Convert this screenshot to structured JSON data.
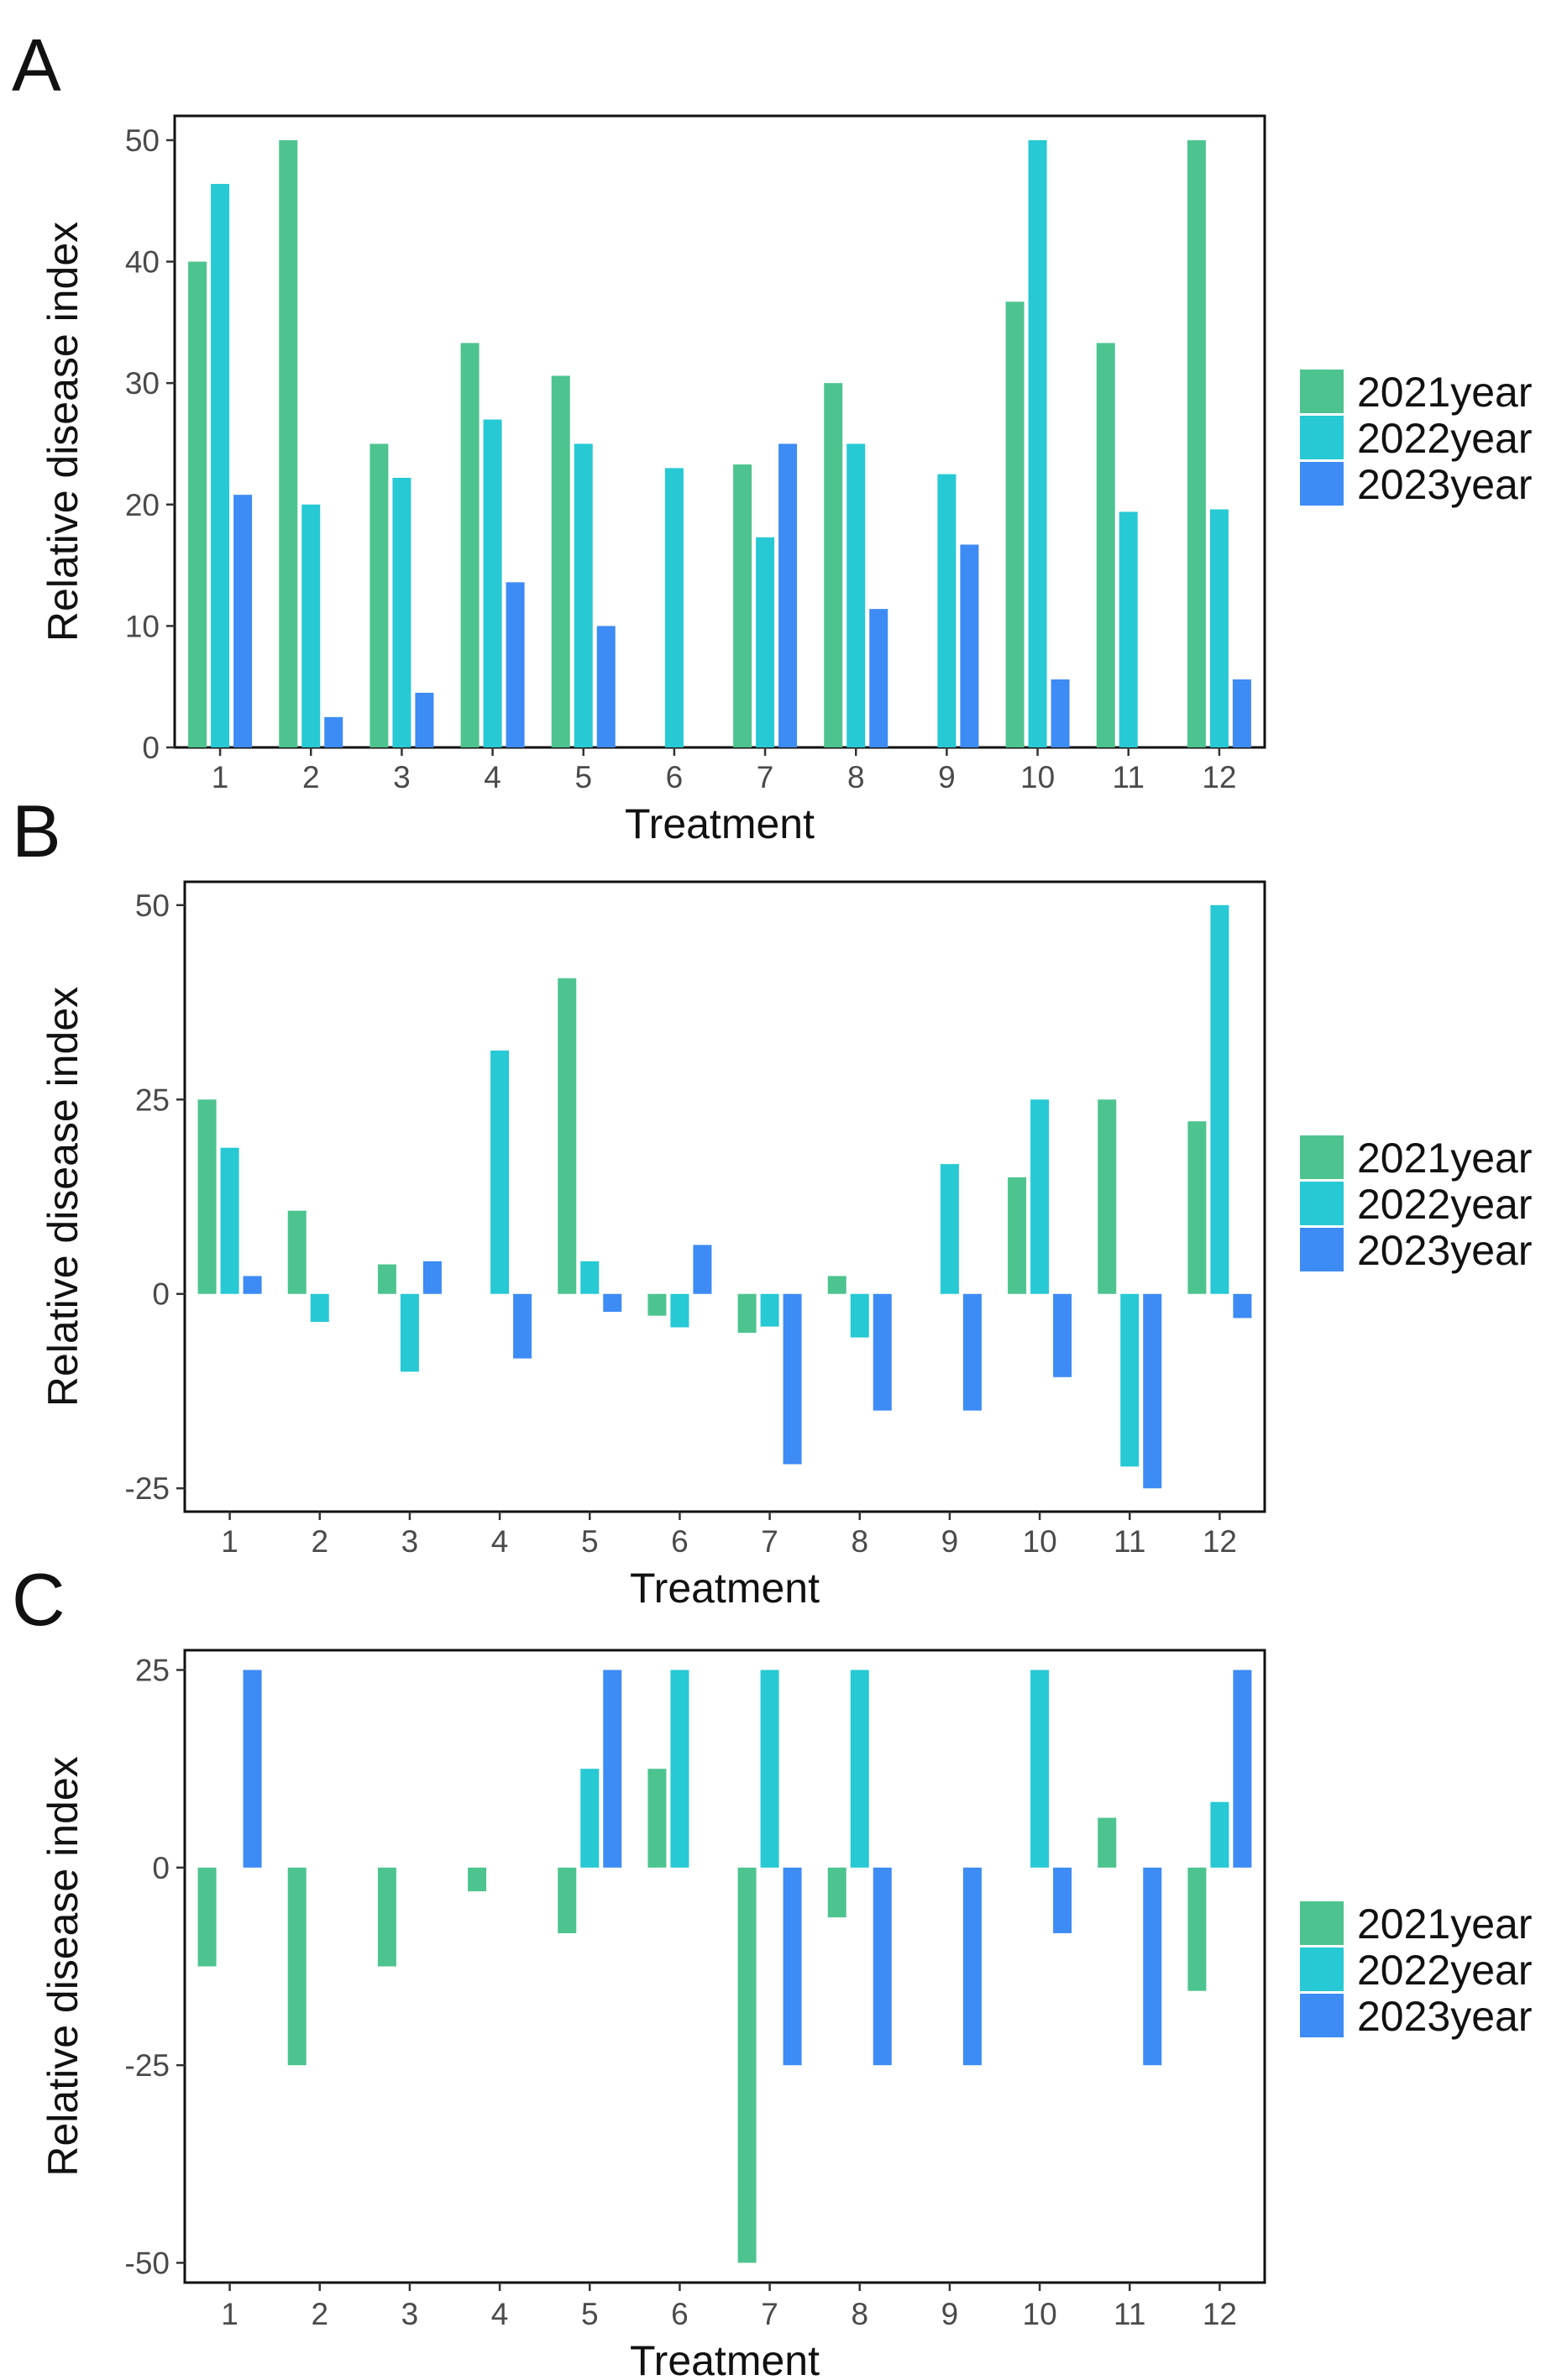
{
  "colors": {
    "2021year": "#4dc48f",
    "2022year": "#26c9d4",
    "2023year": "#3d8bf5"
  },
  "chart_data": [
    {
      "type": "bar",
      "panel_label": "A",
      "title": "",
      "xlabel": "Treatment",
      "ylabel": "Relative disease index",
      "categories": [
        "1",
        "2",
        "3",
        "4",
        "5",
        "6",
        "7",
        "8",
        "9",
        "10",
        "11",
        "12"
      ],
      "ylim": [
        0,
        52
      ],
      "yticks": [
        0,
        10,
        20,
        30,
        40,
        50
      ],
      "ytick_labels": [
        "0",
        "10",
        "20",
        "30",
        "40",
        "50"
      ],
      "legend_position": "right",
      "series": [
        {
          "name": "2021year",
          "values": [
            40,
            50,
            25,
            33.3,
            30.6,
            0,
            23.3,
            30,
            0,
            36.7,
            33.3,
            50
          ]
        },
        {
          "name": "2022year",
          "values": [
            46.4,
            20,
            22.2,
            27,
            25,
            23,
            17.3,
            25,
            22.5,
            50,
            19.4,
            19.6
          ]
        },
        {
          "name": "2023year",
          "values": [
            20.8,
            2.5,
            4.5,
            13.6,
            10,
            0,
            25,
            11.4,
            16.7,
            5.6,
            0,
            5.6
          ]
        }
      ]
    },
    {
      "type": "bar",
      "panel_label": "B",
      "title": "",
      "xlabel": "Treatment",
      "ylabel": "Relative disease index",
      "categories": [
        "1",
        "2",
        "3",
        "4",
        "5",
        "6",
        "7",
        "8",
        "9",
        "10",
        "11",
        "12"
      ],
      "ylim": [
        -28,
        53
      ],
      "yticks": [
        -25,
        0,
        25,
        50
      ],
      "ytick_labels": [
        "-25",
        "0",
        "25",
        "50"
      ],
      "legend_position": "right",
      "series": [
        {
          "name": "2021year",
          "values": [
            25,
            10.7,
            3.8,
            0,
            40.6,
            -2.8,
            -5,
            2.3,
            0,
            15,
            25,
            22.2
          ]
        },
        {
          "name": "2022year",
          "values": [
            18.8,
            -3.6,
            -10,
            31.3,
            4.2,
            -4.3,
            -4.2,
            -5.6,
            16.7,
            25,
            -22.2,
            50
          ]
        },
        {
          "name": "2023year",
          "values": [
            2.3,
            0,
            4.2,
            -8.3,
            -2.3,
            6.3,
            -21.9,
            -15,
            -15,
            -10.7,
            -25,
            -3.1
          ]
        }
      ]
    },
    {
      "type": "bar",
      "panel_label": "C",
      "title": "",
      "xlabel": "Treatment",
      "ylabel": "Relative disease index",
      "categories": [
        "1",
        "2",
        "3",
        "4",
        "5",
        "6",
        "7",
        "8",
        "9",
        "10",
        "11",
        "12"
      ],
      "ylim": [
        -52.5,
        27.5
      ],
      "yticks": [
        -50,
        -25,
        0,
        25
      ],
      "ytick_labels": [
        "-50",
        "-25",
        "0",
        "25"
      ],
      "legend_position": "right",
      "series": [
        {
          "name": "2021year",
          "values": [
            -12.5,
            -25,
            -12.5,
            -3,
            -8.3,
            12.5,
            -50,
            -6.3,
            0,
            0,
            6.3,
            -15.6
          ]
        },
        {
          "name": "2022year",
          "values": [
            0,
            0,
            0,
            0,
            12.5,
            25,
            25,
            25,
            0,
            25,
            0,
            8.3
          ]
        },
        {
          "name": "2023year",
          "values": [
            25,
            0,
            0,
            0,
            25,
            0,
            -25,
            -25,
            -25,
            -8.3,
            -25,
            25
          ]
        }
      ]
    }
  ]
}
